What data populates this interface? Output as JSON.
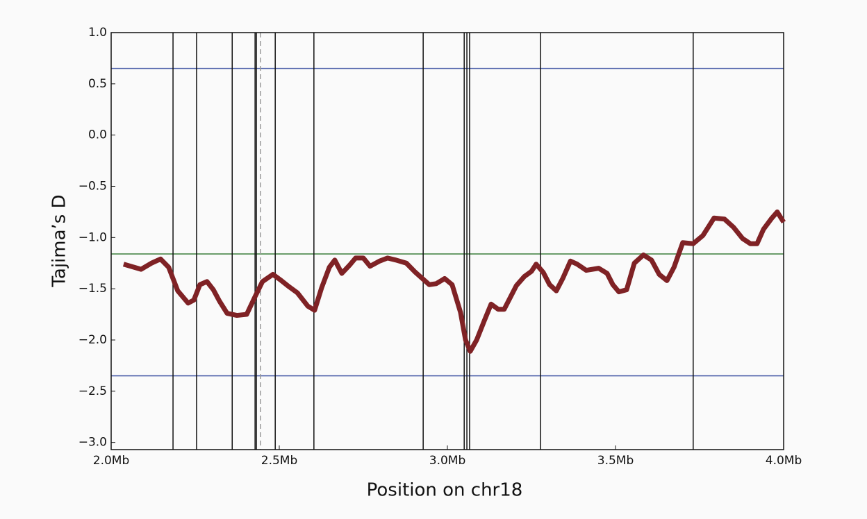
{
  "chart_data": {
    "type": "line",
    "xlabel": "Position on chr18",
    "ylabel": "Tajima’s D",
    "xlim": [
      2.0,
      4.0
    ],
    "ylim": [
      -3.07,
      1.0
    ],
    "xticks": [
      {
        "value": 2.0,
        "label": "2.0Mb"
      },
      {
        "value": 2.5,
        "label": "2.5Mb"
      },
      {
        "value": 3.0,
        "label": "3.0Mb"
      },
      {
        "value": 3.5,
        "label": "3.5Mb"
      },
      {
        "value": 4.0,
        "label": "4.0Mb"
      }
    ],
    "yticks": [
      {
        "value": 1,
        "label": "1.0"
      },
      {
        "value": 0.5,
        "label": "0.5"
      },
      {
        "value": 0,
        "label": "0.0"
      },
      {
        "value": -0.5,
        "label": "−0.5"
      },
      {
        "value": -1,
        "label": "−1.0"
      },
      {
        "value": -1.5,
        "label": "−1.5"
      },
      {
        "value": -2,
        "label": "−2.0"
      },
      {
        "value": -2.5,
        "label": "−2.5"
      },
      {
        "value": -3,
        "label": "−3.0"
      }
    ],
    "hlines": [
      {
        "value": 0.65,
        "color": "#4c5fa8"
      },
      {
        "value": -1.16,
        "color": "#3a7d3a"
      },
      {
        "value": -2.35,
        "color": "#4c5fa8"
      }
    ],
    "vlines": [
      2.184,
      2.254,
      2.36,
      2.428,
      2.432,
      2.488,
      2.603,
      2.928,
      3.05,
      3.058,
      3.066,
      3.277,
      3.731
    ],
    "dashed_vlines": [
      2.444
    ],
    "series": [
      {
        "color": "#7f2225",
        "x": [
          2.037,
          2.089,
          2.12,
          2.147,
          2.171,
          2.198,
          2.229,
          2.246,
          2.264,
          2.285,
          2.304,
          2.322,
          2.345,
          2.374,
          2.403,
          2.426,
          2.45,
          2.481,
          2.506,
          2.529,
          2.554,
          2.585,
          2.605,
          2.626,
          2.649,
          2.665,
          2.686,
          2.709,
          2.727,
          2.75,
          2.77,
          2.798,
          2.822,
          2.847,
          2.878,
          2.905,
          2.946,
          2.967,
          2.992,
          3.014,
          3.039,
          3.054,
          3.068,
          3.087,
          3.11,
          3.13,
          3.151,
          3.169,
          3.205,
          3.229,
          3.25,
          3.264,
          3.285,
          3.304,
          3.324,
          3.343,
          3.366,
          3.386,
          3.413,
          3.45,
          3.475,
          3.492,
          3.51,
          3.533,
          3.556,
          3.583,
          3.607,
          3.63,
          3.653,
          3.674,
          3.7,
          3.731,
          3.76,
          3.793,
          3.824,
          3.851,
          3.878,
          3.901,
          3.921,
          3.94,
          3.965,
          3.981,
          4.0
        ],
        "values": [
          -1.26,
          -1.31,
          -1.25,
          -1.21,
          -1.29,
          -1.52,
          -1.64,
          -1.61,
          -1.46,
          -1.43,
          -1.51,
          -1.62,
          -1.74,
          -1.76,
          -1.75,
          -1.59,
          -1.43,
          -1.36,
          -1.42,
          -1.48,
          -1.54,
          -1.67,
          -1.71,
          -1.49,
          -1.29,
          -1.22,
          -1.35,
          -1.27,
          -1.2,
          -1.2,
          -1.28,
          -1.23,
          -1.2,
          -1.22,
          -1.25,
          -1.34,
          -1.46,
          -1.45,
          -1.4,
          -1.46,
          -1.73,
          -2.0,
          -2.11,
          -2.0,
          -1.81,
          -1.65,
          -1.7,
          -1.7,
          -1.47,
          -1.38,
          -1.33,
          -1.26,
          -1.34,
          -1.46,
          -1.52,
          -1.4,
          -1.23,
          -1.26,
          -1.32,
          -1.3,
          -1.35,
          -1.46,
          -1.53,
          -1.51,
          -1.25,
          -1.17,
          -1.22,
          -1.36,
          -1.42,
          -1.29,
          -1.05,
          -1.06,
          -0.98,
          -0.81,
          -0.82,
          -0.9,
          -1.01,
          -1.06,
          -1.06,
          -0.92,
          -0.81,
          -0.75,
          -0.85
        ]
      }
    ]
  }
}
